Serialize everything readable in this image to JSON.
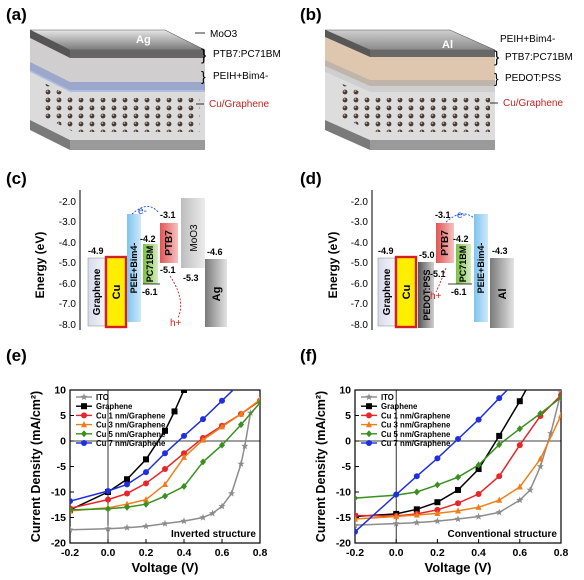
{
  "panel_labels": [
    "(a)",
    "(b)",
    "(c)",
    "(d)",
    "(e)",
    "(f)"
  ],
  "device_a": {
    "electrode": "Ag",
    "layers": [
      "MoO3",
      "PTB7:PC71BM",
      "PEIH+Bim4-",
      "Cu/Graphene"
    ]
  },
  "device_b": {
    "electrode": "Al",
    "layers": [
      "PEIH+Bim4-",
      "PTB7:PC71BM",
      "PEDOT:PSS",
      "Cu/Graphene"
    ]
  },
  "energy_axis": {
    "label": "Energy (eV)",
    "ticks": [
      "-2.0",
      "-3.0",
      "-4.0",
      "-5.0",
      "-6.0",
      "-7.0",
      "-8.0"
    ]
  },
  "energy_c": {
    "blocks": [
      "Graphene",
      "Cu",
      "PEIE+Bim4-",
      "PC71BM",
      "PTB7",
      "MoO3",
      "Ag"
    ],
    "levels": [
      "-4.9",
      "-4.2",
      "-6.1",
      "-3.1",
      "-5.1",
      "-5.3",
      "-4.6"
    ],
    "carriers": [
      "e-",
      "h+"
    ]
  },
  "energy_d": {
    "blocks": [
      "Graphene",
      "Cu",
      "PEDOT:PSS",
      "PTB7",
      "PC71BM",
      "PEIE+Bim4-",
      "Al"
    ],
    "levels": [
      "-4.9",
      "-5.0",
      "-3.1",
      "-5.1",
      "-4.2",
      "-6.1",
      "-4.3"
    ],
    "carriers": [
      "e-",
      "h+"
    ]
  },
  "colors": {
    "ITO": "#8c8c8c",
    "Graphene": "#000000",
    "Cu 1": "#e8262a",
    "Cu 3": "#f07d1a",
    "Cu 5": "#3a8f1f",
    "Cu 7": "#1f2fe0"
  },
  "chart_data": [
    {
      "type": "line",
      "annotation": "Inverted structure",
      "xlabel": "Voltage (V)",
      "ylabel": "Current Density (mA/cm²)",
      "xlim": [
        -0.2,
        0.8
      ],
      "ylim": [
        -20,
        10
      ],
      "xticks": [
        "-0.2",
        "0.0",
        "0.2",
        "0.4",
        "0.6",
        "0.8"
      ],
      "yticks": [
        "10",
        "5",
        "0",
        "-5",
        "-10",
        "-15",
        "-20"
      ],
      "legend": "top-left",
      "series": [
        {
          "name": "ITO",
          "x": [
            -0.2,
            0,
            0.1,
            0.2,
            0.3,
            0.4,
            0.5,
            0.55,
            0.6,
            0.65,
            0.7,
            0.72,
            0.75
          ],
          "y": [
            -17.4,
            -17.2,
            -17.0,
            -16.7,
            -16.2,
            -15.7,
            -15.0,
            -14.2,
            -12.8,
            -10.3,
            -4.5,
            -1.0,
            5.5
          ]
        },
        {
          "name": "Graphene",
          "x": [
            -0.2,
            0,
            0.1,
            0.2,
            0.3,
            0.35,
            0.4
          ],
          "y": [
            -13.5,
            -10.0,
            -7.5,
            -3.6,
            2.0,
            5.8,
            10.0
          ]
        },
        {
          "name": "Cu 1 nm/Graphene",
          "x": [
            -0.2,
            0,
            0.1,
            0.2,
            0.3,
            0.4,
            0.5,
            0.6,
            0.7,
            0.8
          ],
          "y": [
            -13.2,
            -11.5,
            -10.3,
            -8.3,
            -5.5,
            -2.4,
            0.6,
            3.0,
            5.3,
            7.9
          ]
        },
        {
          "name": "Cu 3 nm/Graphene",
          "x": [
            -0.2,
            0,
            0.1,
            0.2,
            0.3,
            0.4,
            0.5,
            0.6,
            0.7,
            0.8
          ],
          "y": [
            -13.7,
            -13.1,
            -12.4,
            -11.5,
            -8.5,
            -3.2,
            0.2,
            2.8,
            5.3,
            8.1
          ]
        },
        {
          "name": "Cu 5 nm/Graphene",
          "x": [
            -0.2,
            0,
            0.1,
            0.2,
            0.3,
            0.4,
            0.5,
            0.6,
            0.7,
            0.8
          ],
          "y": [
            -13.5,
            -13.3,
            -13.0,
            -12.4,
            -10.8,
            -8.9,
            -4.1,
            -0.8,
            3.2,
            7.5
          ]
        },
        {
          "name": "Cu 7 nm/Graphene",
          "x": [
            -0.2,
            0,
            0.1,
            0.2,
            0.3,
            0.4,
            0.5,
            0.6,
            0.7
          ],
          "y": [
            -11.8,
            -9.8,
            -8.5,
            -6.1,
            -2.4,
            1.0,
            4.3,
            7.9,
            11.5
          ]
        }
      ]
    },
    {
      "type": "line",
      "annotation": "Conventional structure",
      "xlabel": "Voltage (V)",
      "ylabel": "Current Density (mA/cm²)",
      "xlim": [
        -0.2,
        0.8
      ],
      "ylim": [
        -20,
        10
      ],
      "xticks": [
        "-0.2",
        "0.0",
        "0.2",
        "0.4",
        "0.6",
        "0.8"
      ],
      "yticks": [
        "10",
        "5",
        "0",
        "-5",
        "-10",
        "-15",
        "-20"
      ],
      "legend": "top-left",
      "series": [
        {
          "name": "ITO",
          "x": [
            -0.2,
            0,
            0.1,
            0.2,
            0.3,
            0.4,
            0.5,
            0.6,
            0.65,
            0.7,
            0.75,
            0.8
          ],
          "y": [
            -16.5,
            -16.2,
            -16.0,
            -15.7,
            -15.3,
            -14.8,
            -14.0,
            -11.6,
            -9.6,
            -5.0,
            1.5,
            9.5
          ]
        },
        {
          "name": "Graphene",
          "x": [
            -0.2,
            0,
            0.1,
            0.2,
            0.3,
            0.4,
            0.5,
            0.6,
            0.65
          ],
          "y": [
            -14.8,
            -14.3,
            -13.4,
            -12.0,
            -9.6,
            -5.5,
            1.0,
            7.8,
            11.5
          ]
        },
        {
          "name": "Cu 1 nm/Graphene",
          "x": [
            -0.2,
            0,
            0.1,
            0.2,
            0.3,
            0.4,
            0.5,
            0.6,
            0.7,
            0.8
          ],
          "y": [
            -14.6,
            -14.7,
            -14.3,
            -13.5,
            -12.2,
            -10.4,
            -6.9,
            -0.8,
            4.9,
            9.0
          ]
        },
        {
          "name": "Cu 3 nm/Graphene",
          "x": [
            -0.2,
            0,
            0.1,
            0.2,
            0.3,
            0.4,
            0.5,
            0.6,
            0.7,
            0.8
          ],
          "y": [
            -15.3,
            -14.8,
            -14.5,
            -14.2,
            -13.7,
            -13.0,
            -11.6,
            -9.0,
            -3.5,
            5.0
          ]
        },
        {
          "name": "Cu 5 nm/Graphene",
          "x": [
            -0.2,
            0,
            0.1,
            0.2,
            0.3,
            0.4,
            0.5,
            0.6,
            0.7,
            0.8
          ],
          "y": [
            -11.2,
            -10.6,
            -10.0,
            -8.6,
            -7.1,
            -4.7,
            -0.7,
            2.4,
            5.4,
            8.5
          ]
        },
        {
          "name": "Cu 7 nm/Graphene",
          "x": [
            -0.2,
            0,
            0.1,
            0.2,
            0.3,
            0.4,
            0.5,
            0.6
          ],
          "y": [
            -17.8,
            -10.5,
            -6.9,
            -3.4,
            0.4,
            4.2,
            8.4,
            12.5
          ]
        }
      ]
    }
  ]
}
